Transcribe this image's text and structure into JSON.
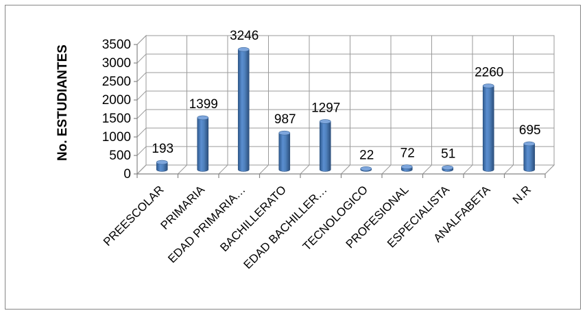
{
  "chart_data": {
    "type": "bar",
    "title": "",
    "xlabel": "",
    "ylabel": "No. ESTUDIANTES",
    "ylim": [
      0,
      3500
    ],
    "yticks": [
      0,
      500,
      1000,
      1500,
      2000,
      2500,
      3000,
      3500
    ],
    "grid": true,
    "legend": "none",
    "bar_color": "#4F81BD",
    "categories": [
      "PREESCOLAR",
      "PRIMARIA",
      "EDAD PRIMARIA…",
      "BACHILLERATO",
      "EDAD BACHILLER…",
      "TECNOLOGICO",
      "PROFESIONAL",
      "ESPECIALISTA",
      "ANALFABETA",
      "N.R"
    ],
    "values": [
      193,
      1399,
      3246,
      987,
      1297,
      22,
      72,
      51,
      2260,
      695
    ]
  }
}
